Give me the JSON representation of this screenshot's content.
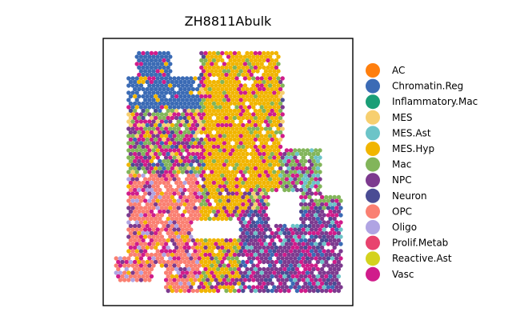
{
  "chart_data": {
    "type": "scatter",
    "title": "ZH8811Abulk",
    "xlabel": "",
    "ylabel": "",
    "grid": false,
    "axis_ticks": false,
    "legend_position": "right",
    "series": [
      {
        "name": "AC",
        "color": "#FF7F0E"
      },
      {
        "name": "Chromatin.Reg",
        "color": "#3B6BB5"
      },
      {
        "name": "Inflammatory.Mac",
        "color": "#1A9E77"
      },
      {
        "name": "MES",
        "color": "#F7CF6F"
      },
      {
        "name": "MES.Ast",
        "color": "#6CC4C8"
      },
      {
        "name": "MES.Hyp",
        "color": "#F1B500"
      },
      {
        "name": "Mac",
        "color": "#82B55A"
      },
      {
        "name": "NPC",
        "color": "#7D3A8F"
      },
      {
        "name": "Neuron",
        "color": "#4A4C94"
      },
      {
        "name": "OPC",
        "color": "#FA8072"
      },
      {
        "name": "Oligo",
        "color": "#B0A4E3"
      },
      {
        "name": "Prolif.Metab",
        "color": "#E8436E"
      },
      {
        "name": "Reactive.Ast",
        "color": "#D4D21E"
      },
      {
        "name": "Vasc",
        "color": "#D01C8B"
      }
    ]
  }
}
